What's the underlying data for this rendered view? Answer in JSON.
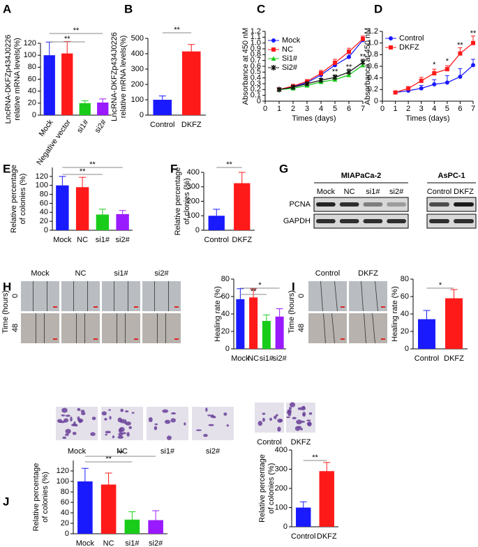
{
  "chart_data": [
    {
      "panel": "A",
      "type": "bar",
      "ylabel": [
        "LncRNA-DKFZp434J0226",
        "relative mRNA levels(%)"
      ],
      "categories": [
        "Mock",
        "Negative vector",
        "si1#",
        "si2#"
      ],
      "values": [
        100,
        103,
        20,
        21
      ],
      "errors": [
        22,
        20,
        4,
        6
      ],
      "colors": [
        "#1a1aff",
        "#ff1a1a",
        "#1acc1a",
        "#9a1aff"
      ],
      "ylim": [
        0,
        120
      ],
      "yticks": [
        0,
        20,
        40,
        60,
        80,
        100,
        120
      ],
      "annotations": [
        "**",
        "**"
      ]
    },
    {
      "panel": "B",
      "type": "bar",
      "ylabel": [
        "LncRNA-DKFZp434J0226",
        "relative mRNA levels(%)"
      ],
      "categories": [
        "Control",
        "DKFZ"
      ],
      "values": [
        100,
        415
      ],
      "errors": [
        25,
        45
      ],
      "colors": [
        "#1a1aff",
        "#ff1a1a"
      ],
      "ylim": [
        0,
        500
      ],
      "yticks": [
        0,
        100,
        200,
        300,
        400,
        500
      ],
      "annotations": [
        "**"
      ]
    },
    {
      "panel": "C",
      "type": "line",
      "ylabel": [
        "Absorbance at 450 nM"
      ],
      "xlabel": "Times (days)",
      "xlim": [
        0,
        7
      ],
      "xticks": [
        0,
        1,
        2,
        3,
        4,
        5,
        6,
        7
      ],
      "ylim": [
        0,
        1.2
      ],
      "yticks": [
        0,
        0.1,
        0.2,
        0.3,
        0.4,
        0.5,
        0.6,
        0.7,
        0.8,
        0.9,
        {
          "value": 1,
          "label": "1.0"
        },
        1.1,
        1.2
      ],
      "series": [
        {
          "name": "Mock",
          "color": "#1a1aff",
          "marker": "circle",
          "x": [
            1,
            2,
            3,
            4,
            5,
            6,
            7
          ],
          "values": [
            0.2,
            0.25,
            0.32,
            0.45,
            0.62,
            0.76,
            1.05
          ],
          "errors": [
            0.01,
            0.02,
            0.03,
            0.04,
            0.05,
            0.06,
            0.05
          ]
        },
        {
          "name": "NC",
          "color": "#ff1a1a",
          "marker": "square",
          "x": [
            1,
            2,
            3,
            4,
            5,
            6,
            7
          ],
          "values": [
            0.2,
            0.26,
            0.34,
            0.48,
            0.66,
            0.85,
            1.07
          ],
          "errors": [
            0.01,
            0.02,
            0.03,
            0.05,
            0.06,
            0.06,
            0.05
          ]
        },
        {
          "name": "Si1#",
          "color": "#1acc1a",
          "marker": "triangle",
          "x": [
            1,
            2,
            3,
            4,
            5,
            6,
            7
          ],
          "values": [
            0.2,
            0.22,
            0.27,
            0.33,
            0.37,
            0.45,
            0.62
          ],
          "errors": [
            0.01,
            0.02,
            0.02,
            0.03,
            0.04,
            0.05,
            0.06
          ]
        },
        {
          "name": "Si2#",
          "color": "#111111",
          "marker": "star",
          "x": [
            1,
            2,
            3,
            4,
            5,
            6,
            7
          ],
          "values": [
            0.2,
            0.24,
            0.3,
            0.36,
            0.41,
            0.5,
            0.67
          ],
          "errors": [
            0.01,
            0.02,
            0.02,
            0.03,
            0.04,
            0.05,
            0.05
          ]
        }
      ],
      "annotations": [
        "**",
        "**",
        "**"
      ]
    },
    {
      "panel": "D",
      "type": "line",
      "ylabel": [
        "Absorbance at 450 nM"
      ],
      "xlabel": "Times (days)",
      "xlim": [
        0,
        7
      ],
      "xticks": [
        0,
        1,
        2,
        3,
        4,
        5,
        6,
        7
      ],
      "ylim": [
        0,
        1.2
      ],
      "yticks": [
        0,
        0.2,
        0.4,
        0.6,
        0.8,
        {
          "value": 1,
          "label": "1.0"
        },
        1.2
      ],
      "series": [
        {
          "name": "Control",
          "color": "#1a1aff",
          "marker": "circle",
          "x": [
            1,
            2,
            3,
            4,
            5,
            6,
            7
          ],
          "values": [
            0.15,
            0.18,
            0.22,
            0.29,
            0.32,
            0.42,
            0.62
          ],
          "errors": [
            0.02,
            0.03,
            0.05,
            0.08,
            0.12,
            0.14,
            0.1
          ]
        },
        {
          "name": "DKFZ",
          "color": "#ff1a1a",
          "marker": "square",
          "x": [
            1,
            2,
            3,
            4,
            5,
            6,
            7
          ],
          "values": [
            0.15,
            0.22,
            0.35,
            0.48,
            0.55,
            0.82,
            1.0
          ],
          "errors": [
            0.02,
            0.03,
            0.06,
            0.07,
            0.06,
            0.1,
            0.12
          ]
        }
      ],
      "annotations": [
        "*",
        "*",
        "**",
        "**"
      ]
    },
    {
      "panel": "E",
      "type": "bar",
      "ylabel": [
        "Relative percentage",
        "of colonies (%)"
      ],
      "categories": [
        "Mock",
        "NC",
        "si1#",
        "si2#"
      ],
      "values": [
        100,
        96,
        35,
        36
      ],
      "errors": [
        20,
        22,
        12,
        8
      ],
      "colors": [
        "#1a1aff",
        "#ff1a1a",
        "#1acc1a",
        "#9a1aff"
      ],
      "ylim": [
        0,
        140
      ],
      "yticks": [
        0,
        20,
        40,
        60,
        80,
        100,
        120
      ],
      "annotations": [
        "**",
        "**"
      ]
    },
    {
      "panel": "F",
      "type": "bar",
      "ylabel": [
        "Relative percentage",
        "of clonies (%)"
      ],
      "categories": [
        "Control",
        "DKFZ"
      ],
      "values": [
        100,
        325
      ],
      "errors": [
        45,
        75
      ],
      "colors": [
        "#1a1aff",
        "#ff1a1a"
      ],
      "ylim": [
        0,
        400
      ],
      "yticks": [
        0,
        100,
        200,
        300,
        400
      ],
      "annotations": [
        "**"
      ]
    },
    {
      "panel": "H",
      "type": "bar",
      "ylabel": [
        "Healing rate (%)"
      ],
      "categories": [
        "Mock",
        "NC",
        "si1#",
        "si2#"
      ],
      "values": [
        57,
        59,
        32,
        37
      ],
      "errors": [
        12,
        10,
        7,
        9
      ],
      "colors": [
        "#1a1aff",
        "#ff1a1a",
        "#1acc1a",
        "#9a1aff"
      ],
      "ylim": [
        0,
        80
      ],
      "yticks": [
        0,
        20,
        40,
        60,
        80
      ],
      "annotations": [
        "**",
        "*"
      ]
    },
    {
      "panel": "I",
      "type": "bar",
      "ylabel": [
        "Healing rate (%)"
      ],
      "categories": [
        "Control",
        "DKFZ"
      ],
      "values": [
        34,
        58
      ],
      "errors": [
        10,
        10
      ],
      "colors": [
        "#1a1aff",
        "#ff1a1a"
      ],
      "ylim": [
        0,
        80
      ],
      "yticks": [
        0,
        20,
        40,
        60,
        80
      ],
      "annotations": [
        "*"
      ]
    },
    {
      "panel": "J",
      "type": "bar",
      "ylabel": [
        "Relative percentage",
        "of colonies (%)"
      ],
      "categories": [
        "Mock",
        "NC",
        "si1#",
        "si2#"
      ],
      "values": [
        100,
        94,
        27,
        26
      ],
      "errors": [
        25,
        22,
        15,
        18
      ],
      "colors": [
        "#1a1aff",
        "#ff1a1a",
        "#1acc1a",
        "#9a1aff"
      ],
      "ylim": [
        0,
        140
      ],
      "yticks": [
        0,
        20,
        40,
        60,
        80,
        100,
        120
      ],
      "annotations": [
        "**",
        "**"
      ]
    },
    {
      "type": "bar",
      "ylabel": [
        "Relative percentage",
        "of colonies (%)"
      ],
      "categories": [
        "Control",
        "DKFZ"
      ],
      "values": [
        100,
        290
      ],
      "errors": [
        30,
        45
      ],
      "colors": [
        "#1a1aff",
        "#ff1a1a"
      ],
      "ylim": [
        0,
        400
      ],
      "yticks": [
        0,
        100,
        200,
        300,
        400
      ],
      "annotations": [
        "**"
      ]
    }
  ],
  "blot": {
    "panel": "G",
    "groups": [
      {
        "name": "MIAPaCa-2",
        "lanes": [
          "Mock",
          "NC",
          "si1#",
          "si2#"
        ]
      },
      {
        "name": "AsPC-1",
        "lanes": [
          "Control",
          "DKFZ"
        ]
      }
    ],
    "rows": [
      "PCNA",
      "GAPDH"
    ]
  },
  "wound_images": [
    {
      "row_title": "Time (hours)",
      "rows": [
        "0",
        "48"
      ],
      "columns": [
        "Mock",
        "NC",
        "si1#",
        "si2#"
      ]
    },
    {
      "row_title": "Time (hours)",
      "rows": [
        "0",
        "48"
      ],
      "columns": [
        "Control",
        "DKFZ"
      ]
    }
  ],
  "transwell_images": [
    {
      "columns": [
        "Mock",
        "NC",
        "si1#",
        "si2#"
      ]
    },
    {
      "columns": [
        "Control",
        "DKFZ"
      ]
    }
  ]
}
